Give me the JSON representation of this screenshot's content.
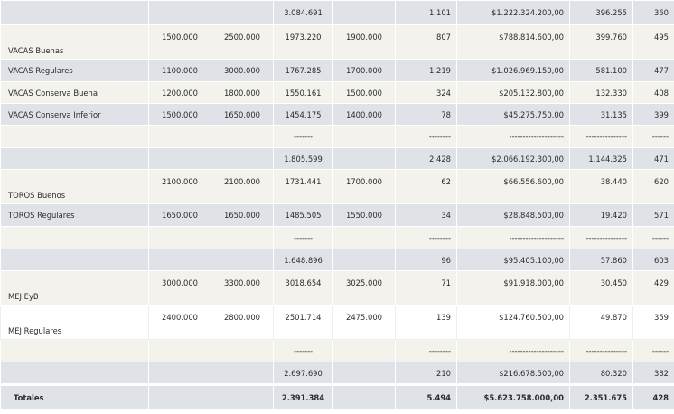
{
  "rows": [
    {
      "style": "band",
      "h": 27,
      "va": "mid",
      "cells": [
        "",
        "",
        "",
        "3.084.691",
        "",
        "1.101",
        "$1.222.324.200,00",
        "396.255",
        "360"
      ]
    },
    {
      "style": "cream",
      "h": 38,
      "va": "top",
      "cells": [
        "VACAS Buenas",
        "1500.000",
        "2500.000",
        "1973.220",
        "1900.000",
        "807",
        "$788.814.600,00",
        "399.760",
        "495"
      ]
    },
    {
      "style": "band",
      "h": 25,
      "va": "mid",
      "cells": [
        "VACAS Regulares",
        "1100.000",
        "3000.000",
        "1767.285",
        "1700.000",
        "1.219",
        "$1.026.969.150,00",
        "581.100",
        "477"
      ]
    },
    {
      "style": "cream",
      "h": 24,
      "va": "mid",
      "cells": [
        "VACAS Conserva Buena",
        "1200.000",
        "1800.000",
        "1550.161",
        "1500.000",
        "324",
        "$205.132.800,00",
        "132.330",
        "408"
      ]
    },
    {
      "style": "band",
      "h": 24,
      "va": "mid",
      "cells": [
        "VACAS Conserva Inferior",
        "1500.000",
        "1650.000",
        "1454.175",
        "1400.000",
        "78",
        "$45.275.750,00",
        "31.135",
        "399"
      ]
    },
    {
      "style": "cream",
      "h": 25,
      "va": "mid",
      "cells": [
        "",
        "",
        "",
        "-------",
        "",
        "--------",
        "--------------------",
        "---------------",
        "------"
      ]
    },
    {
      "style": "band",
      "h": 24,
      "va": "mid",
      "cells": [
        "",
        "",
        "",
        "1.805.599",
        "",
        "2.428",
        "$2.066.192.300,00",
        "1.144.325",
        "471"
      ]
    },
    {
      "style": "cream",
      "h": 38,
      "va": "top",
      "cells": [
        "TOROS Buenos",
        "2100.000",
        "2100.000",
        "1731.441",
        "1700.000",
        "62",
        "$66.556.600,00",
        "38.440",
        "620"
      ]
    },
    {
      "style": "band",
      "h": 25,
      "va": "mid",
      "cells": [
        "TOROS Regulares",
        "1650.000",
        "1650.000",
        "1485.505",
        "1550.000",
        "34",
        "$28.848.500,00",
        "19.420",
        "571"
      ]
    },
    {
      "style": "cream",
      "h": 25,
      "va": "mid",
      "cells": [
        "",
        "",
        "",
        "-------",
        "",
        "--------",
        "--------------------",
        "---------------",
        "------"
      ]
    },
    {
      "style": "band",
      "h": 24,
      "va": "mid",
      "cells": [
        "",
        "",
        "",
        "1.648.896",
        "",
        "96",
        "$95.405.100,00",
        "57.860",
        "603"
      ]
    },
    {
      "style": "cream",
      "h": 38,
      "va": "top",
      "cells": [
        "MEJ EyB",
        "3000.000",
        "3300.000",
        "3018.654",
        "3025.000",
        "71",
        "$91.918.000,00",
        "30.450",
        "429"
      ]
    },
    {
      "style": "white",
      "h": 38,
      "va": "top",
      "cells": [
        "MEJ Regulares",
        "2400.000",
        "2800.000",
        "2501.714",
        "2475.000",
        "139",
        "$124.760.500,00",
        "49.870",
        "359"
      ]
    },
    {
      "style": "cream",
      "h": 25,
      "va": "mid",
      "cells": [
        "",
        "",
        "",
        "-------",
        "",
        "--------",
        "--------------------",
        "---------------",
        "------"
      ]
    },
    {
      "style": "band",
      "h": 25,
      "va": "mid",
      "cells": [
        "",
        "",
        "",
        "2.697.690",
        "",
        "210",
        "$216.678.500,00",
        "80.320",
        "382"
      ]
    }
  ],
  "totals": {
    "label": "Totales",
    "kg": "2.391.384",
    "cabezas": "5.494",
    "importe": "$5.623.758.000,00",
    "kilos": "2.351.675",
    "promedio": "428"
  }
}
